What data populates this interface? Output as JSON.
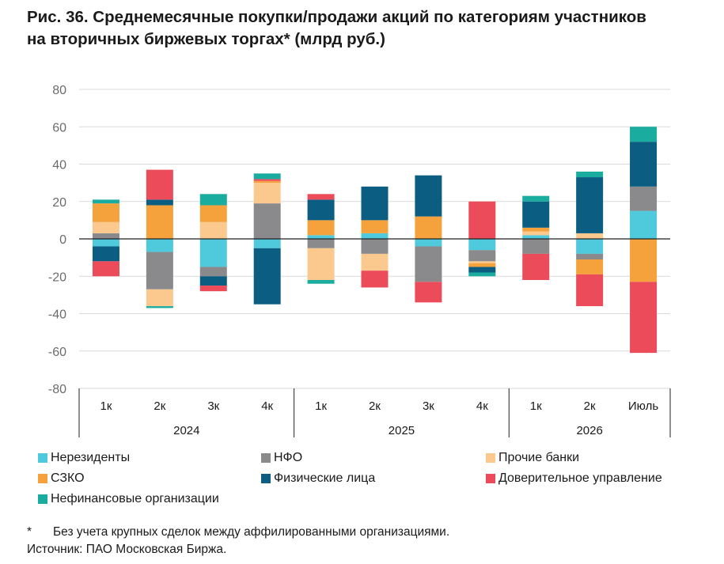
{
  "title": {
    "line1": "Рис. 36. Среднемесячные покупки/продажи акций по категориям участников",
    "line2": "на вторичных биржевых торгах* (млрд руб.)"
  },
  "chart_data": {
    "type": "bar",
    "stacked": true,
    "categories": [
      "1к",
      "2к",
      "3к",
      "4к",
      "1к",
      "2к",
      "3к",
      "4к",
      "1к",
      "2к",
      "Июль"
    ],
    "groups": [
      {
        "label": "2024",
        "span": 4
      },
      {
        "label": "2025",
        "span": 4
      },
      {
        "label": "2026",
        "span": 3
      }
    ],
    "ylim": [
      -80,
      80
    ],
    "yticks": [
      80,
      60,
      40,
      20,
      0,
      -20,
      -40,
      -60,
      -80
    ],
    "series": [
      {
        "name": "Нерезиденты",
        "color": "#4fc9dc",
        "values": [
          -4,
          -7,
          -15,
          -5,
          2,
          3,
          -4,
          -6,
          2,
          -8,
          15
        ]
      },
      {
        "name": "НФО",
        "color": "#8a8a8c",
        "values": [
          3,
          -20,
          -5,
          19,
          -5,
          -8,
          -19,
          -6,
          -8,
          -3,
          13
        ]
      },
      {
        "name": "Прочие банки",
        "color": "#fbc88e",
        "values": [
          6,
          -9,
          9,
          11,
          -17,
          -9,
          0,
          -1,
          2,
          3,
          0
        ]
      },
      {
        "name": "СЗКО",
        "color": "#f5a13c",
        "values": [
          10,
          18,
          9,
          1,
          8,
          7,
          12,
          -2,
          2,
          -8,
          -23
        ]
      },
      {
        "name": "Физические лица",
        "color": "#0b5e82",
        "values": [
          -8,
          3,
          -5,
          -30,
          11,
          18,
          22,
          -3,
          14,
          30,
          24
        ]
      },
      {
        "name": "Доверительное управление",
        "color": "#ec4b5a",
        "values": [
          -8,
          16,
          -3,
          1,
          3,
          -9,
          -11,
          20,
          -14,
          -17,
          -38
        ]
      },
      {
        "name": "Нефинансовые организации",
        "color": "#1aac9e",
        "values": [
          2,
          -1,
          6,
          3,
          -2,
          0,
          0,
          -2,
          3,
          3,
          8
        ]
      }
    ]
  },
  "legend": [
    {
      "label": "Нерезиденты",
      "color": "#4fc9dc"
    },
    {
      "label": "НФО",
      "color": "#8a8a8c"
    },
    {
      "label": "Прочие банки",
      "color": "#fbc88e"
    },
    {
      "label": "СЗКО",
      "color": "#f5a13c"
    },
    {
      "label": "Физические лица",
      "color": "#0b5e82"
    },
    {
      "label": "Доверительное управление",
      "color": "#ec4b5a"
    },
    {
      "label": "Нефинансовые организации",
      "color": "#1aac9e"
    }
  ],
  "notes": {
    "star": "*",
    "footnote": "Без учета крупных сделок между аффилированными организациями.",
    "source": "Источник: ПАО Московская Биржа."
  }
}
